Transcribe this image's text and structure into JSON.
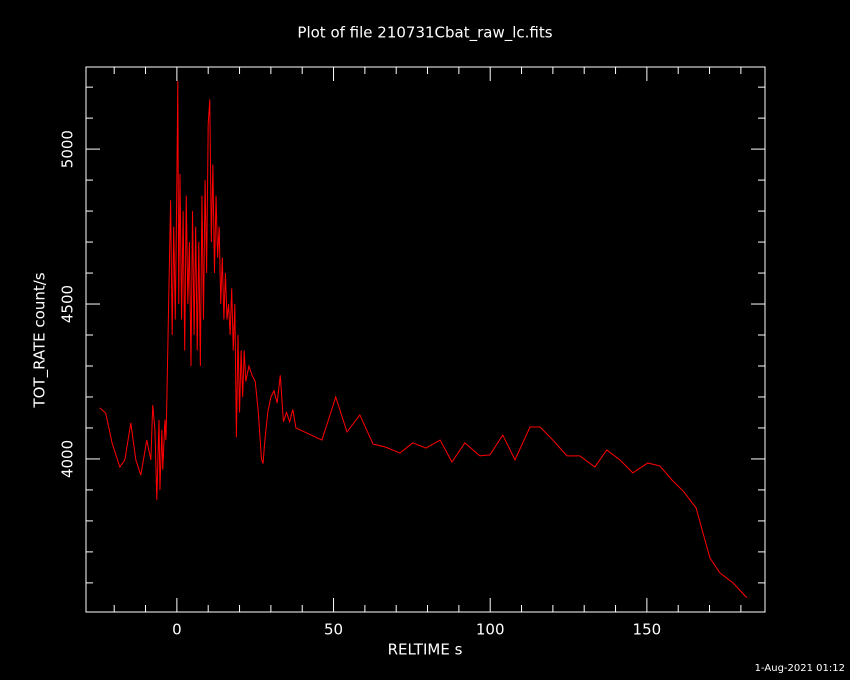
{
  "chart_data": {
    "type": "line",
    "title": "Plot of file 210731Cbat_raw_lc.fits",
    "x_label": "RELTIME  s",
    "y_label": "TOT_RATE  count/s",
    "footer": "1-Aug-2021 01:12",
    "xlim": [
      -29,
      187.7
    ],
    "ylim": [
      3506,
      5265
    ],
    "xticks": [
      0,
      50,
      100,
      150
    ],
    "yticks": [
      4000,
      4500,
      5000
    ],
    "xminor_ticks": [
      -20,
      -10,
      10,
      20,
      30,
      40,
      60,
      70,
      80,
      90,
      110,
      120,
      130,
      140,
      160,
      170,
      180
    ],
    "yminor_ticks": [
      3600,
      3700,
      3800,
      3900,
      4100,
      4200,
      4300,
      4400,
      4600,
      4700,
      4800,
      4900,
      5100,
      5200
    ],
    "series": [
      {
        "name": "TOT_RATE",
        "color": "#ff0000",
        "x": [
          -24.6,
          -22.7,
          -20.7,
          -18.2,
          -16.6,
          -14.7,
          -13.1,
          -11.5,
          -9.6,
          -8.3,
          -7.7,
          -7.0,
          -6.4,
          -5.7,
          -5.4,
          -4.8,
          -4.5,
          -3.8,
          -3.5,
          -3.2,
          -2,
          -1.5,
          -1,
          -0.5,
          0,
          0.3,
          0.6,
          1,
          1.5,
          2,
          2.5,
          3,
          3.5,
          4,
          4.5,
          5,
          5.5,
          6,
          6.5,
          7,
          7.5,
          8,
          8.5,
          9,
          9.5,
          10,
          10.5,
          11,
          11.5,
          12,
          12.5,
          13,
          13.5,
          14,
          14.5,
          15,
          15.5,
          16,
          16.5,
          17,
          17.5,
          18,
          18.5,
          19,
          19.5,
          20,
          20.5,
          21,
          21.5,
          22,
          23,
          24,
          25,
          26,
          27,
          27.5,
          28,
          29,
          30,
          31,
          32,
          33,
          34,
          35,
          36,
          37,
          38,
          46.3,
          50.7,
          54.3,
          58.4,
          62.6,
          66.4,
          71.2,
          75.3,
          79.5,
          84,
          87.8,
          91.9,
          96.7,
          99.9,
          104,
          107.9,
          112.7,
          115.9,
          120,
          124.5,
          128.6,
          133.4,
          137.2,
          141.4,
          145.5,
          150.3,
          154.2,
          158,
          161.8,
          165.7,
          170.1,
          173.3,
          177.5,
          181.9
        ],
        "values": [
          4165,
          4148,
          4052,
          3974,
          3997,
          4116,
          3997,
          3948,
          4061,
          3997,
          4174,
          4094,
          3868,
          4126,
          3900,
          4094,
          3965,
          4126,
          4061,
          4190,
          4835,
          4400,
          4750,
          4450,
          4900,
          5220,
          4500,
          4920,
          4450,
          4800,
          4350,
          4850,
          4500,
          4700,
          4300,
          4800,
          4400,
          4750,
          4350,
          4700,
          4300,
          4850,
          4450,
          4900,
          4600,
          5080,
          5160,
          4700,
          4950,
          4600,
          4850,
          4650,
          4750,
          4500,
          4650,
          4450,
          4600,
          4450,
          4500,
          4400,
          4550,
          4350,
          4500,
          4070,
          4400,
          4150,
          4350,
          4200,
          4350,
          4250,
          4300,
          4270,
          4250,
          4150,
          4000,
          3985,
          4050,
          4150,
          4200,
          4220,
          4180,
          4270,
          4120,
          4150,
          4120,
          4160,
          4100,
          4061,
          4200,
          4087,
          4142,
          4048,
          4039,
          4019,
          4052,
          4035,
          4061,
          3990,
          4052,
          4010,
          4013,
          4077,
          3997,
          4103,
          4103,
          4061,
          4010,
          4010,
          3974,
          4029,
          3997,
          3955,
          3987,
          3977,
          3932,
          3894,
          3842,
          3681,
          3632,
          3600,
          3552
        ]
      }
    ]
  }
}
